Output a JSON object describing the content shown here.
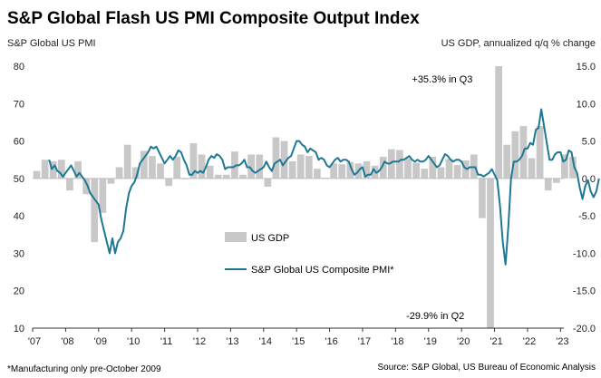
{
  "chart_data": {
    "type": "bar+line",
    "title": "S&P Global Flash US PMI Composite Output Index",
    "left_axis_label": "S&P Global US PMI",
    "right_axis_label": "US GDP, annualized q/q % change",
    "left_ylim": [
      10,
      80
    ],
    "left_ticks": [
      "80",
      "70",
      "60",
      "50",
      "40",
      "30",
      "20",
      "10"
    ],
    "right_ylim": [
      -20,
      15
    ],
    "right_ticks": [
      "15.0",
      "10.0",
      "5.0",
      "0.0",
      "-5.0",
      "-10.0",
      "-15.0",
      "-20.0"
    ],
    "x_ticks": [
      "'07",
      "'08",
      "'09",
      "'10",
      "'11",
      "'12",
      "'13",
      "'14",
      "'15",
      "'16",
      "'17",
      "'18",
      "'19",
      "'20",
      "'21",
      "'22",
      "'23"
    ],
    "x_range": [
      2007,
      2023.1
    ],
    "gdp_color": "#c8c8c8",
    "pmi_color": "#1e7893",
    "legend": {
      "gdp": "US GDP",
      "pmi": "S&P Global US Composite PMI*"
    },
    "annotations": {
      "high": "+35.3% in Q3",
      "low": "-29.9% in Q2"
    },
    "footnote": "*Manufacturing only pre-October 2009",
    "source": "Source: S&P Global, US Bureau of Economic Analysis",
    "gdp_series": {
      "name": "US GDP",
      "quarter_start": 2007.0,
      "values": [
        1.0,
        2.5,
        2.3,
        2.5,
        -1.6,
        2.3,
        -2.1,
        -8.5,
        -4.6,
        -0.7,
        1.5,
        4.5,
        1.5,
        3.7,
        3.0,
        2.0,
        -1.0,
        2.9,
        -0.1,
        4.7,
        3.2,
        1.7,
        0.5,
        0.5,
        3.6,
        0.5,
        3.2,
        3.2,
        -1.1,
        5.5,
        5.0,
        2.3,
        3.2,
        3.0,
        1.3,
        0.1,
        2.0,
        1.9,
        2.2,
        2.0,
        2.3,
        1.7,
        2.9,
        3.9,
        3.8,
        2.7,
        2.1,
        1.3,
        2.9,
        1.5,
        2.6,
        1.8,
        2.4,
        3.2,
        -5.3,
        -29.9,
        35.3,
        4.5,
        6.3,
        7.0,
        2.7,
        7.0,
        -1.6,
        -0.6,
        3.2,
        2.9
      ],
      "line_points_per_year": 12
    },
    "pmi_series": {
      "name": "S&P Global US Composite PMI*",
      "start": 2007.5,
      "values": [
        55,
        52.5,
        53.5,
        52,
        51.5,
        50.5,
        51.5,
        52.5,
        53.5,
        52,
        50.5,
        51.5,
        50.5,
        49.5,
        48,
        46,
        45,
        44,
        43,
        39,
        36,
        33,
        30,
        34,
        30,
        33,
        34,
        36,
        42,
        46,
        48,
        49,
        51,
        54,
        55,
        56,
        57,
        58.5,
        58,
        58.5,
        57,
        55.5,
        54,
        55,
        56,
        55,
        56,
        57.5,
        57,
        55,
        53.5,
        51,
        51,
        52,
        51.5,
        52,
        51.5,
        53,
        55,
        56,
        55.5,
        56.5,
        56,
        55,
        52.5,
        53,
        53,
        53,
        53.5,
        53.5,
        54,
        55,
        53,
        53,
        52,
        51.5,
        52,
        52.5,
        53,
        54.5,
        53,
        52,
        54,
        54.5,
        55,
        53.5,
        54.5,
        55.5,
        56,
        58,
        60,
        60,
        59,
        58.5,
        57,
        58,
        57.5,
        57,
        55,
        55.5,
        55,
        53.5,
        53,
        54,
        55,
        55.5,
        54.5,
        55,
        55,
        54.5,
        52.5,
        51,
        51.5,
        52.5,
        53,
        50.5,
        51,
        51,
        52.5,
        51.5,
        52,
        53,
        54.5,
        54,
        54,
        54.5,
        54.5,
        54.5,
        55,
        55,
        55.5,
        56,
        55,
        54.5,
        55,
        54.5,
        54.5,
        55,
        56,
        55,
        54,
        53,
        53.5,
        55,
        56.5,
        56,
        55,
        54.5,
        55,
        55,
        54.5,
        53,
        52.5,
        53,
        53,
        53,
        51,
        51,
        50.5,
        51,
        51.5,
        52.5,
        51,
        49.5,
        42.5,
        33,
        27,
        37,
        50,
        54.5,
        54.5,
        55,
        56,
        58,
        58,
        59.5,
        59,
        63,
        63.5,
        68.5,
        64,
        59.5,
        55,
        55,
        56.5,
        57,
        57,
        54.5,
        55,
        57.5,
        57,
        53,
        51.5,
        47.5,
        44.5,
        48,
        49.5,
        46.5,
        45,
        46.5,
        50
      ]
    }
  }
}
